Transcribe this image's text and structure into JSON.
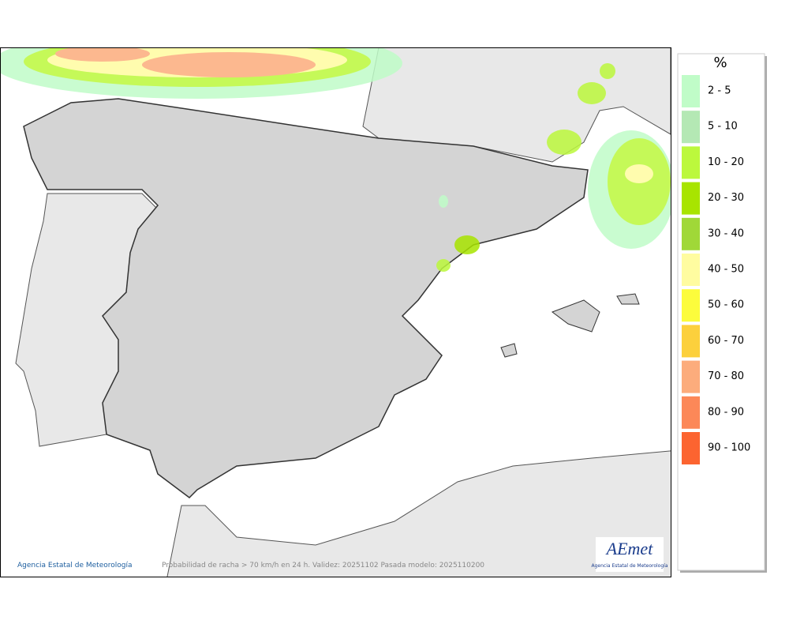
{
  "map": {
    "footer_credit": "Agencia Estatal de Meteorología",
    "caption": "Probabilidad de racha > 70 km/h en 24 h. Validez: 20251102 Pasada modelo: 2025110200",
    "logo": {
      "name": "AEmet",
      "subtitle": "Agencia Estatal de Meteorología"
    }
  },
  "legend": {
    "title": "%",
    "entries": [
      {
        "label": "2 - 5",
        "color": "#c0fcc8"
      },
      {
        "label": "5 - 10",
        "color": "#b4e8b4"
      },
      {
        "label": "10 - 20",
        "color": "#bcf83c"
      },
      {
        "label": "20 - 30",
        "color": "#a8e400"
      },
      {
        "label": "30 - 40",
        "color": "#a0d838"
      },
      {
        "label": "40 - 50",
        "color": "#fffca0"
      },
      {
        "label": "50 - 60",
        "color": "#fcfc3c"
      },
      {
        "label": "60 - 70",
        "color": "#fcd03c"
      },
      {
        "label": "70 - 80",
        "color": "#fcac7c"
      },
      {
        "label": "80 - 90",
        "color": "#fc8858"
      },
      {
        "label": "90 - 100",
        "color": "#fc6430"
      }
    ]
  }
}
